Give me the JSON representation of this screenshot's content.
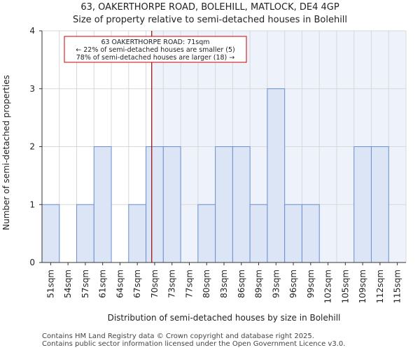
{
  "title_line1": "63, OAKERTHORPE ROAD, BOLEHILL, MATLOCK, DE4 4GP",
  "title_line2": "Size of property relative to semi-detached houses in Bolehill",
  "footer_line1": "Contains HM Land Registry data © Crown copyright and database right 2025.",
  "footer_line2": "Contains public sector information licensed under the Open Government Licence v3.0.",
  "colors": {
    "bar_fill": "#dbe5f5",
    "bar_edge": "#6b8fd0",
    "marker_line": "#990000",
    "annotation_border": "#cc0000",
    "grid_line": "#d8d8d8",
    "shade_fill": "#eef2fa"
  },
  "chart_data": {
    "type": "bar",
    "title": "63, OAKERTHORPE ROAD, BOLEHILL, MATLOCK, DE4 4GP",
    "subtitle": "Size of property relative to semi-detached houses in Bolehill",
    "xlabel": "Distribution of semi-detached houses by size in Bolehill",
    "ylabel": "Number of semi-detached properties",
    "categories": [
      "51sqm",
      "54sqm",
      "57sqm",
      "61sqm",
      "64sqm",
      "67sqm",
      "70sqm",
      "73sqm",
      "77sqm",
      "80sqm",
      "83sqm",
      "86sqm",
      "89sqm",
      "93sqm",
      "96sqm",
      "99sqm",
      "102sqm",
      "105sqm",
      "109sqm",
      "112sqm",
      "115sqm"
    ],
    "values": [
      1,
      0,
      1,
      2,
      0,
      1,
      2,
      2,
      0,
      1,
      2,
      2,
      1,
      3,
      1,
      1,
      0,
      0,
      2,
      2,
      0
    ],
    "ylim": [
      0,
      4
    ],
    "yticks": [
      0,
      1,
      2,
      3,
      4
    ],
    "grid": true,
    "marker": {
      "value_sqm": 71,
      "category_index": 6.33
    },
    "annotation": {
      "line1": "63 OAKERTHORPE ROAD: 71sqm",
      "line2": "← 22% of semi-detached houses are smaller (5)",
      "line3": "78% of semi-detached houses are larger (18) →"
    }
  }
}
